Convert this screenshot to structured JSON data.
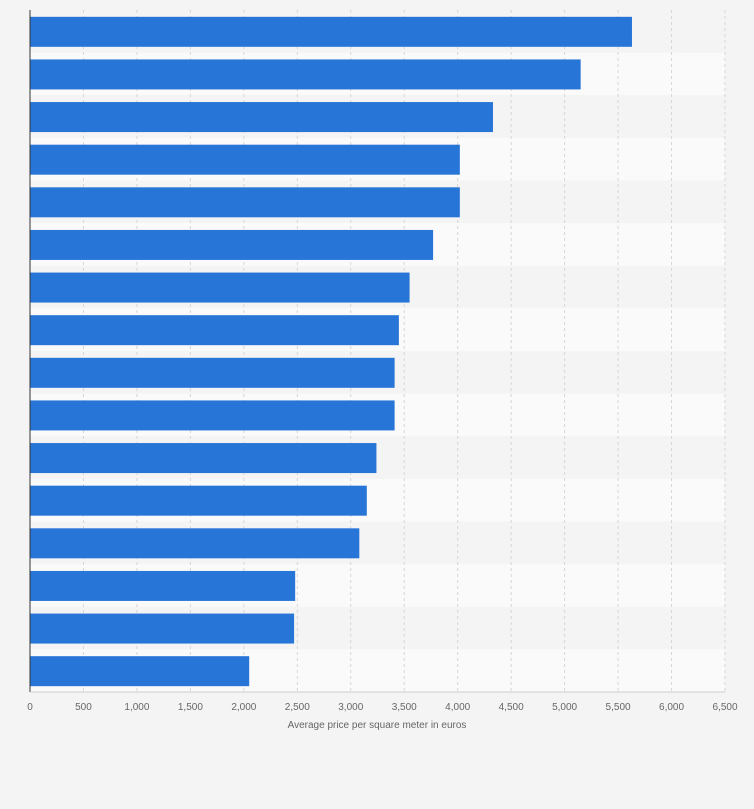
{
  "chart_data": {
    "type": "bar",
    "orientation": "horizontal",
    "categories": [
      "",
      "",
      "",
      "",
      "",
      "",
      "",
      "",
      "",
      "",
      "",
      "",
      "",
      "",
      "",
      ""
    ],
    "values": [
      5630,
      5150,
      4330,
      4020,
      4020,
      3770,
      3550,
      3450,
      3410,
      3410,
      3240,
      3150,
      3080,
      2480,
      2470,
      2050
    ],
    "title": "",
    "xlabel": "Average price per square meter in euros",
    "ylabel": "",
    "xlim": [
      0,
      6500
    ],
    "xticks": [
      0,
      500,
      1000,
      1500,
      2000,
      2500,
      3000,
      3500,
      4000,
      4500,
      5000,
      5500,
      6000,
      6500
    ],
    "xtick_labels": [
      "0",
      "500",
      "1,000",
      "1,500",
      "2,000",
      "2,500",
      "3,000",
      "3,500",
      "4,000",
      "4,500",
      "5,000",
      "5,500",
      "6,000",
      "6,500"
    ],
    "grid": true,
    "legend": "none"
  },
  "colors": {
    "bar": "#2875d8",
    "band_light": "#fafafa",
    "band_dark": "#f4f4f4",
    "grid": "#d6d6d6",
    "axis": "#333333",
    "text": "#666666"
  }
}
